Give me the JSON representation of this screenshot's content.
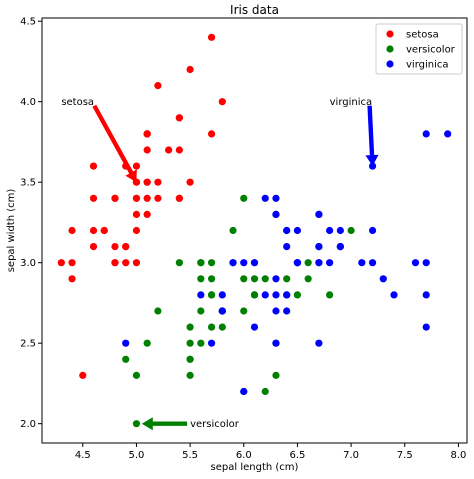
{
  "chart_data": {
    "type": "scatter",
    "title": "Iris data",
    "xlabel": "sepal length (cm)",
    "ylabel": "sepal width (cm)",
    "xlim": [
      4.12,
      8.08
    ],
    "ylim": [
      1.88,
      4.52
    ],
    "xticks": [
      4.5,
      5.0,
      5.5,
      6.0,
      6.5,
      7.0,
      7.5,
      8.0
    ],
    "xtick_labels": [
      "4.5",
      "5.0",
      "5.5",
      "6.0",
      "6.5",
      "7.0",
      "7.5",
      "8.0"
    ],
    "yticks": [
      2.0,
      2.5,
      3.0,
      3.5,
      4.0,
      4.5
    ],
    "ytick_labels": [
      "2.0",
      "2.5",
      "3.0",
      "3.5",
      "4.0",
      "4.5"
    ],
    "grid": false,
    "legend_position": "top-right",
    "series": [
      {
        "name": "setosa",
        "color": "#ff0000",
        "points": [
          [
            5.1,
            3.5
          ],
          [
            4.9,
            3.0
          ],
          [
            4.7,
            3.2
          ],
          [
            4.6,
            3.1
          ],
          [
            5.0,
            3.6
          ],
          [
            5.4,
            3.9
          ],
          [
            4.6,
            3.4
          ],
          [
            5.0,
            3.4
          ],
          [
            4.4,
            2.9
          ],
          [
            4.9,
            3.1
          ],
          [
            5.4,
            3.7
          ],
          [
            4.8,
            3.4
          ],
          [
            4.8,
            3.0
          ],
          [
            4.3,
            3.0
          ],
          [
            5.8,
            4.0
          ],
          [
            5.7,
            4.4
          ],
          [
            5.4,
            3.9
          ],
          [
            5.1,
            3.5
          ],
          [
            5.7,
            3.8
          ],
          [
            5.1,
            3.8
          ],
          [
            5.4,
            3.4
          ],
          [
            5.1,
            3.7
          ],
          [
            4.6,
            3.6
          ],
          [
            5.1,
            3.3
          ],
          [
            4.8,
            3.4
          ],
          [
            5.0,
            3.0
          ],
          [
            5.0,
            3.4
          ],
          [
            5.2,
            3.5
          ],
          [
            5.2,
            3.4
          ],
          [
            4.7,
            3.2
          ],
          [
            4.8,
            3.1
          ],
          [
            5.4,
            3.4
          ],
          [
            5.2,
            4.1
          ],
          [
            5.5,
            4.2
          ],
          [
            4.9,
            3.1
          ],
          [
            5.0,
            3.2
          ],
          [
            5.5,
            3.5
          ],
          [
            4.9,
            3.6
          ],
          [
            4.4,
            3.0
          ],
          [
            5.1,
            3.4
          ],
          [
            5.0,
            3.5
          ],
          [
            4.5,
            2.3
          ],
          [
            4.4,
            3.2
          ],
          [
            5.0,
            3.5
          ],
          [
            5.1,
            3.8
          ],
          [
            4.8,
            3.0
          ],
          [
            5.1,
            3.8
          ],
          [
            4.6,
            3.2
          ],
          [
            5.3,
            3.7
          ],
          [
            5.0,
            3.3
          ]
        ]
      },
      {
        "name": "versicolor",
        "color": "#008000",
        "points": [
          [
            7.0,
            3.2
          ],
          [
            6.4,
            3.2
          ],
          [
            6.9,
            3.1
          ],
          [
            5.5,
            2.3
          ],
          [
            6.5,
            2.8
          ],
          [
            5.7,
            2.8
          ],
          [
            6.3,
            3.3
          ],
          [
            4.9,
            2.4
          ],
          [
            6.6,
            2.9
          ],
          [
            5.2,
            2.7
          ],
          [
            5.0,
            2.0
          ],
          [
            5.9,
            3.0
          ],
          [
            6.0,
            2.2
          ],
          [
            6.1,
            2.9
          ],
          [
            5.6,
            2.9
          ],
          [
            6.7,
            3.1
          ],
          [
            5.6,
            3.0
          ],
          [
            5.8,
            2.7
          ],
          [
            6.2,
            2.2
          ],
          [
            5.6,
            2.5
          ],
          [
            5.9,
            3.2
          ],
          [
            6.1,
            2.8
          ],
          [
            6.3,
            2.5
          ],
          [
            6.1,
            2.8
          ],
          [
            6.4,
            2.9
          ],
          [
            6.6,
            3.0
          ],
          [
            6.8,
            2.8
          ],
          [
            6.7,
            3.0
          ],
          [
            6.0,
            2.9
          ],
          [
            5.7,
            2.6
          ],
          [
            5.5,
            2.4
          ],
          [
            5.5,
            2.4
          ],
          [
            5.8,
            2.7
          ],
          [
            6.0,
            2.7
          ],
          [
            5.4,
            3.0
          ],
          [
            6.0,
            3.4
          ],
          [
            6.7,
            3.1
          ],
          [
            6.3,
            2.3
          ],
          [
            5.6,
            3.0
          ],
          [
            5.5,
            2.5
          ],
          [
            5.5,
            2.6
          ],
          [
            6.1,
            3.0
          ],
          [
            5.8,
            2.6
          ],
          [
            5.0,
            2.3
          ],
          [
            5.6,
            2.7
          ],
          [
            5.7,
            3.0
          ],
          [
            5.7,
            2.9
          ],
          [
            6.2,
            2.9
          ],
          [
            5.1,
            2.5
          ],
          [
            5.7,
            2.8
          ]
        ]
      },
      {
        "name": "virginica",
        "color": "#0000ff",
        "points": [
          [
            6.3,
            3.3
          ],
          [
            5.8,
            2.7
          ],
          [
            7.1,
            3.0
          ],
          [
            6.3,
            2.9
          ],
          [
            6.5,
            3.0
          ],
          [
            7.6,
            3.0
          ],
          [
            4.9,
            2.5
          ],
          [
            7.3,
            2.9
          ],
          [
            6.7,
            2.5
          ],
          [
            7.2,
            3.6
          ],
          [
            6.5,
            3.2
          ],
          [
            6.4,
            2.7
          ],
          [
            6.8,
            3.0
          ],
          [
            5.7,
            2.5
          ],
          [
            5.8,
            2.8
          ],
          [
            6.4,
            3.2
          ],
          [
            6.5,
            3.0
          ],
          [
            7.7,
            3.8
          ],
          [
            7.7,
            2.6
          ],
          [
            6.0,
            2.2
          ],
          [
            6.9,
            3.2
          ],
          [
            5.6,
            2.8
          ],
          [
            7.7,
            2.8
          ],
          [
            6.3,
            2.7
          ],
          [
            6.7,
            3.3
          ],
          [
            7.2,
            3.2
          ],
          [
            6.2,
            2.8
          ],
          [
            6.1,
            3.0
          ],
          [
            6.4,
            2.8
          ],
          [
            7.2,
            3.0
          ],
          [
            7.4,
            2.8
          ],
          [
            7.9,
            3.8
          ],
          [
            6.4,
            2.8
          ],
          [
            6.3,
            2.8
          ],
          [
            6.1,
            2.6
          ],
          [
            7.7,
            3.0
          ],
          [
            6.3,
            3.4
          ],
          [
            6.4,
            3.1
          ],
          [
            6.0,
            3.0
          ],
          [
            6.9,
            3.1
          ],
          [
            6.7,
            3.1
          ],
          [
            6.9,
            3.1
          ],
          [
            5.8,
            2.7
          ],
          [
            6.8,
            3.2
          ],
          [
            6.7,
            3.3
          ],
          [
            6.7,
            3.0
          ],
          [
            6.3,
            2.5
          ],
          [
            6.5,
            3.0
          ],
          [
            6.2,
            3.4
          ],
          [
            5.9,
            3.0
          ]
        ]
      }
    ],
    "annotations": [
      {
        "text": "setosa",
        "text_at": [
          4.3,
          4.0
        ],
        "arrow_to": [
          5.0,
          3.5
        ],
        "color": "#ff0000"
      },
      {
        "text": "virginica",
        "text_at": [
          6.8,
          4.0
        ],
        "arrow_to": [
          7.2,
          3.6
        ],
        "color": "#0000ff"
      },
      {
        "text": "versicolor",
        "text_at": [
          5.5,
          2.0
        ],
        "arrow_to": [
          5.05,
          2.0
        ],
        "color": "#008000"
      }
    ]
  }
}
